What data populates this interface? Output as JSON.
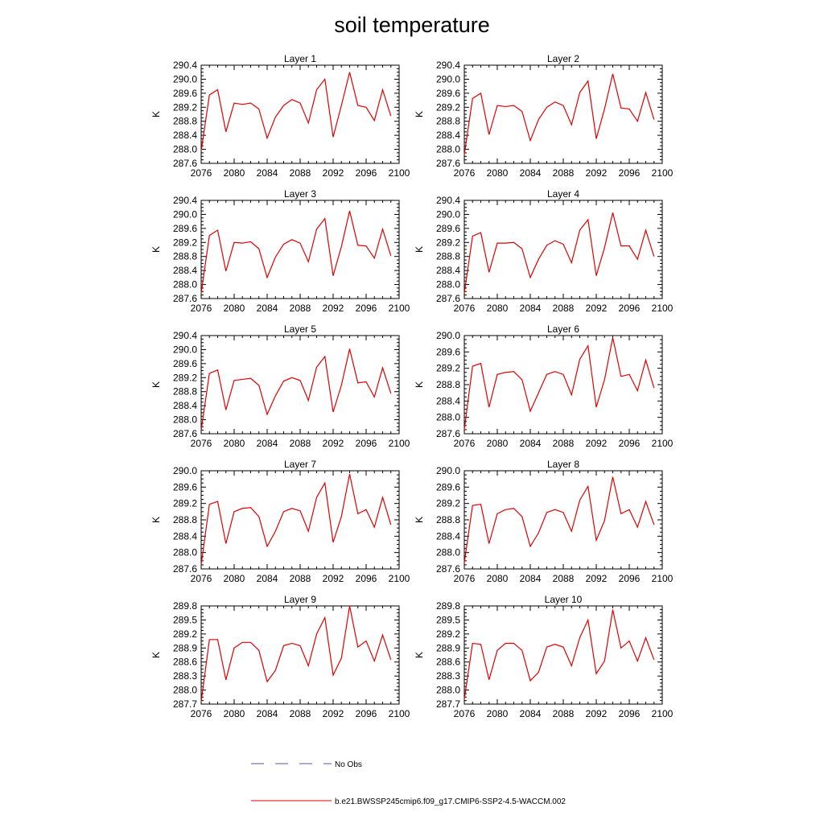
{
  "figure": {
    "title": "soil temperature",
    "colors": {
      "model": "#e00000",
      "obs": "#5555aa",
      "axis": "#000000"
    },
    "legend": [
      {
        "label": "No Obs",
        "style": "dashed"
      },
      {
        "label": "b.e21.BWSSP245cmip6.f09_g17.CMIP6-SSP2-4.5-WACCM.002",
        "style": "solid"
      }
    ]
  },
  "chart_data": [
    {
      "type": "line",
      "title": "Layer 1",
      "ylabel": "K",
      "xlim": [
        2076,
        2100
      ],
      "ylim": [
        287.6,
        290.4
      ],
      "xticks": [
        "2076",
        "2080",
        "2084",
        "2088",
        "2092",
        "2096",
        "2100"
      ],
      "yticks": [
        "287.6",
        "288.0",
        "288.4",
        "288.8",
        "289.2",
        "289.6",
        "290.0",
        "290.4"
      ],
      "x": [
        2076,
        2077,
        2078,
        2079,
        2080,
        2081,
        2082,
        2083,
        2084,
        2085,
        2086,
        2087,
        2088,
        2089,
        2090,
        2091,
        2092,
        2093,
        2094,
        2095,
        2096,
        2097,
        2098,
        2099
      ],
      "series": [
        {
          "name": "b.e21.BWSSP245cmip6.f09_g17.CMIP6-SSP2-4.5-WACCM.002",
          "values": [
            287.95,
            289.55,
            289.7,
            288.5,
            289.32,
            289.28,
            289.32,
            289.15,
            288.32,
            288.92,
            289.25,
            289.42,
            289.32,
            288.75,
            289.7,
            290.0,
            288.35,
            289.25,
            290.2,
            289.25,
            289.2,
            288.82,
            289.7,
            288.95
          ]
        }
      ]
    },
    {
      "type": "line",
      "title": "Layer 2",
      "ylabel": "K",
      "xlim": [
        2076,
        2100
      ],
      "ylim": [
        287.6,
        290.4
      ],
      "xticks": [
        "2076",
        "2080",
        "2084",
        "2088",
        "2092",
        "2096",
        "2100"
      ],
      "yticks": [
        "287.6",
        "288.0",
        "288.4",
        "288.8",
        "289.2",
        "289.6",
        "290.0",
        "290.4"
      ],
      "x": [
        2076,
        2077,
        2078,
        2079,
        2080,
        2081,
        2082,
        2083,
        2084,
        2085,
        2086,
        2087,
        2088,
        2089,
        2090,
        2091,
        2092,
        2093,
        2094,
        2095,
        2096,
        2097,
        2098,
        2099
      ],
      "series": [
        {
          "name": "b.e21.BWSSP245cmip6.f09_g17.CMIP6-SSP2-4.5-WACCM.002",
          "values": [
            287.85,
            289.45,
            289.6,
            288.42,
            289.25,
            289.22,
            289.25,
            289.08,
            288.25,
            288.85,
            289.2,
            289.35,
            289.25,
            288.7,
            289.62,
            289.95,
            288.3,
            289.15,
            290.15,
            289.18,
            289.15,
            288.8,
            289.62,
            288.85
          ]
        }
      ]
    },
    {
      "type": "line",
      "title": "Layer 3",
      "ylabel": "K",
      "xlim": [
        2076,
        2100
      ],
      "ylim": [
        287.6,
        290.4
      ],
      "xticks": [
        "2076",
        "2080",
        "2084",
        "2088",
        "2092",
        "2096",
        "2100"
      ],
      "yticks": [
        "287.6",
        "288.0",
        "288.4",
        "288.8",
        "289.2",
        "289.6",
        "290.0",
        "290.4"
      ],
      "x": [
        2076,
        2077,
        2078,
        2079,
        2080,
        2081,
        2082,
        2083,
        2084,
        2085,
        2086,
        2087,
        2088,
        2089,
        2090,
        2091,
        2092,
        2093,
        2094,
        2095,
        2096,
        2097,
        2098,
        2099
      ],
      "series": [
        {
          "name": "b.e21.BWSSP245cmip6.f09_g17.CMIP6-SSP2-4.5-WACCM.002",
          "values": [
            287.75,
            289.4,
            289.55,
            288.38,
            289.2,
            289.18,
            289.22,
            289.02,
            288.2,
            288.78,
            289.15,
            289.28,
            289.18,
            288.65,
            289.58,
            289.88,
            288.25,
            289.08,
            290.1,
            289.12,
            289.1,
            288.75,
            289.58,
            288.82
          ]
        }
      ]
    },
    {
      "type": "line",
      "title": "Layer 4",
      "ylabel": "K",
      "xlim": [
        2076,
        2100
      ],
      "ylim": [
        287.6,
        290.4
      ],
      "xticks": [
        "2076",
        "2080",
        "2084",
        "2088",
        "2092",
        "2096",
        "2100"
      ],
      "yticks": [
        "287.6",
        "288.0",
        "288.4",
        "288.8",
        "289.2",
        "289.6",
        "290.0",
        "290.4"
      ],
      "x": [
        2076,
        2077,
        2078,
        2079,
        2080,
        2081,
        2082,
        2083,
        2084,
        2085,
        2086,
        2087,
        2088,
        2089,
        2090,
        2091,
        2092,
        2093,
        2094,
        2095,
        2096,
        2097,
        2098,
        2099
      ],
      "series": [
        {
          "name": "b.e21.BWSSP245cmip6.f09_g17.CMIP6-SSP2-4.5-WACCM.002",
          "values": [
            287.75,
            289.38,
            289.48,
            288.35,
            289.18,
            289.18,
            289.2,
            289.02,
            288.2,
            288.72,
            289.12,
            289.25,
            289.15,
            288.62,
            289.55,
            289.85,
            288.25,
            289.05,
            290.05,
            289.1,
            289.1,
            288.72,
            289.55,
            288.8
          ]
        }
      ]
    },
    {
      "type": "line",
      "title": "Layer 5",
      "ylabel": "K",
      "xlim": [
        2076,
        2100
      ],
      "ylim": [
        287.6,
        290.4
      ],
      "xticks": [
        "2076",
        "2080",
        "2084",
        "2088",
        "2092",
        "2096",
        "2100"
      ],
      "yticks": [
        "287.6",
        "288.0",
        "288.4",
        "288.8",
        "289.2",
        "289.6",
        "290.0",
        "290.4"
      ],
      "x": [
        2076,
        2077,
        2078,
        2079,
        2080,
        2081,
        2082,
        2083,
        2084,
        2085,
        2086,
        2087,
        2088,
        2089,
        2090,
        2091,
        2092,
        2093,
        2094,
        2095,
        2096,
        2097,
        2098,
        2099
      ],
      "series": [
        {
          "name": "b.e21.BWSSP245cmip6.f09_g17.CMIP6-SSP2-4.5-WACCM.002",
          "values": [
            287.7,
            289.32,
            289.42,
            288.28,
            289.12,
            289.15,
            289.18,
            288.98,
            288.15,
            288.68,
            289.1,
            289.2,
            289.12,
            288.55,
            289.5,
            289.8,
            288.22,
            288.98,
            290.02,
            289.05,
            289.08,
            288.65,
            289.48,
            288.75
          ]
        }
      ]
    },
    {
      "type": "line",
      "title": "Layer 6",
      "ylabel": "K",
      "xlim": [
        2076,
        2100
      ],
      "ylim": [
        287.6,
        290.0
      ],
      "xticks": [
        "2076",
        "2080",
        "2084",
        "2088",
        "2092",
        "2096",
        "2100"
      ],
      "yticks": [
        "287.6",
        "288.0",
        "288.4",
        "288.8",
        "289.2",
        "289.6",
        "290.0"
      ],
      "x": [
        2076,
        2077,
        2078,
        2079,
        2080,
        2081,
        2082,
        2083,
        2084,
        2085,
        2086,
        2087,
        2088,
        2089,
        2090,
        2091,
        2092,
        2093,
        2094,
        2095,
        2096,
        2097,
        2098,
        2099
      ],
      "series": [
        {
          "name": "b.e21.BWSSP245cmip6.f09_g17.CMIP6-SSP2-4.5-WACCM.002",
          "values": [
            287.7,
            289.25,
            289.32,
            288.25,
            289.05,
            289.1,
            289.12,
            288.92,
            288.15,
            288.6,
            289.05,
            289.12,
            289.05,
            288.55,
            289.42,
            289.75,
            288.25,
            288.92,
            289.95,
            289.0,
            289.05,
            288.65,
            289.4,
            288.72
          ]
        }
      ]
    },
    {
      "type": "line",
      "title": "Layer 7",
      "ylabel": "K",
      "xlim": [
        2076,
        2100
      ],
      "ylim": [
        287.6,
        290.0
      ],
      "xticks": [
        "2076",
        "2080",
        "2084",
        "2088",
        "2092",
        "2096",
        "2100"
      ],
      "yticks": [
        "287.6",
        "288.0",
        "288.4",
        "288.8",
        "289.2",
        "289.6",
        "290.0"
      ],
      "x": [
        2076,
        2077,
        2078,
        2079,
        2080,
        2081,
        2082,
        2083,
        2084,
        2085,
        2086,
        2087,
        2088,
        2089,
        2090,
        2091,
        2092,
        2093,
        2094,
        2095,
        2096,
        2097,
        2098,
        2099
      ],
      "series": [
        {
          "name": "b.e21.BWSSP245cmip6.f09_g17.CMIP6-SSP2-4.5-WACCM.002",
          "values": [
            287.7,
            289.18,
            289.25,
            288.22,
            289.0,
            289.08,
            289.1,
            288.88,
            288.15,
            288.52,
            289.0,
            289.08,
            289.02,
            288.52,
            289.35,
            289.7,
            288.25,
            288.88,
            289.92,
            288.95,
            289.05,
            288.62,
            289.35,
            288.68
          ]
        }
      ]
    },
    {
      "type": "line",
      "title": "Layer 8",
      "ylabel": "K",
      "xlim": [
        2076,
        2100
      ],
      "ylim": [
        287.6,
        290.0
      ],
      "xticks": [
        "2076",
        "2080",
        "2084",
        "2088",
        "2092",
        "2096",
        "2100"
      ],
      "yticks": [
        "287.6",
        "288.0",
        "288.4",
        "288.8",
        "289.2",
        "289.6",
        "290.0"
      ],
      "x": [
        2076,
        2077,
        2078,
        2079,
        2080,
        2081,
        2082,
        2083,
        2084,
        2085,
        2086,
        2087,
        2088,
        2089,
        2090,
        2091,
        2092,
        2093,
        2094,
        2095,
        2096,
        2097,
        2098,
        2099
      ],
      "series": [
        {
          "name": "b.e21.BWSSP245cmip6.f09_g17.CMIP6-SSP2-4.5-WACCM.002",
          "values": [
            287.75,
            289.15,
            289.18,
            288.22,
            288.95,
            289.05,
            289.08,
            288.88,
            288.15,
            288.48,
            288.98,
            289.05,
            288.98,
            288.52,
            289.28,
            289.62,
            288.3,
            288.78,
            289.85,
            288.95,
            289.05,
            288.62,
            289.25,
            288.68
          ]
        }
      ]
    },
    {
      "type": "line",
      "title": "Layer 9",
      "ylabel": "K",
      "xlim": [
        2076,
        2100
      ],
      "ylim": [
        287.7,
        289.8
      ],
      "xticks": [
        "2076",
        "2080",
        "2084",
        "2088",
        "2092",
        "2096",
        "2100"
      ],
      "yticks": [
        "287.7",
        "288.0",
        "288.3",
        "288.6",
        "288.9",
        "289.2",
        "289.5",
        "289.8"
      ],
      "x": [
        2076,
        2077,
        2078,
        2079,
        2080,
        2081,
        2082,
        2083,
        2084,
        2085,
        2086,
        2087,
        2088,
        2089,
        2090,
        2091,
        2092,
        2093,
        2094,
        2095,
        2096,
        2097,
        2098,
        2099
      ],
      "series": [
        {
          "name": "b.e21.BWSSP245cmip6.f09_g17.CMIP6-SSP2-4.5-WACCM.002",
          "values": [
            287.75,
            289.08,
            289.08,
            288.22,
            288.9,
            289.02,
            289.02,
            288.85,
            288.18,
            288.42,
            288.95,
            289.0,
            288.95,
            288.52,
            289.2,
            289.55,
            288.32,
            288.68,
            289.8,
            288.92,
            289.05,
            288.62,
            289.18,
            288.65
          ]
        }
      ]
    },
    {
      "type": "line",
      "title": "Layer 10",
      "ylabel": "K",
      "xlim": [
        2076,
        2100
      ],
      "ylim": [
        287.7,
        289.8
      ],
      "xticks": [
        "2076",
        "2080",
        "2084",
        "2088",
        "2092",
        "2096",
        "2100"
      ],
      "yticks": [
        "287.7",
        "288.0",
        "288.3",
        "288.6",
        "288.9",
        "289.2",
        "289.5",
        "289.8"
      ],
      "x": [
        2076,
        2077,
        2078,
        2079,
        2080,
        2081,
        2082,
        2083,
        2084,
        2085,
        2086,
        2087,
        2088,
        2089,
        2090,
        2091,
        2092,
        2093,
        2094,
        2095,
        2096,
        2097,
        2098,
        2099
      ],
      "series": [
        {
          "name": "b.e21.BWSSP245cmip6.f09_g17.CMIP6-SSP2-4.5-WACCM.002",
          "values": [
            287.8,
            289.0,
            288.98,
            288.22,
            288.85,
            289.0,
            289.0,
            288.85,
            288.2,
            288.38,
            288.92,
            288.98,
            288.92,
            288.52,
            289.12,
            289.5,
            288.35,
            288.62,
            289.72,
            288.9,
            289.05,
            288.62,
            289.12,
            288.65
          ]
        }
      ]
    }
  ]
}
